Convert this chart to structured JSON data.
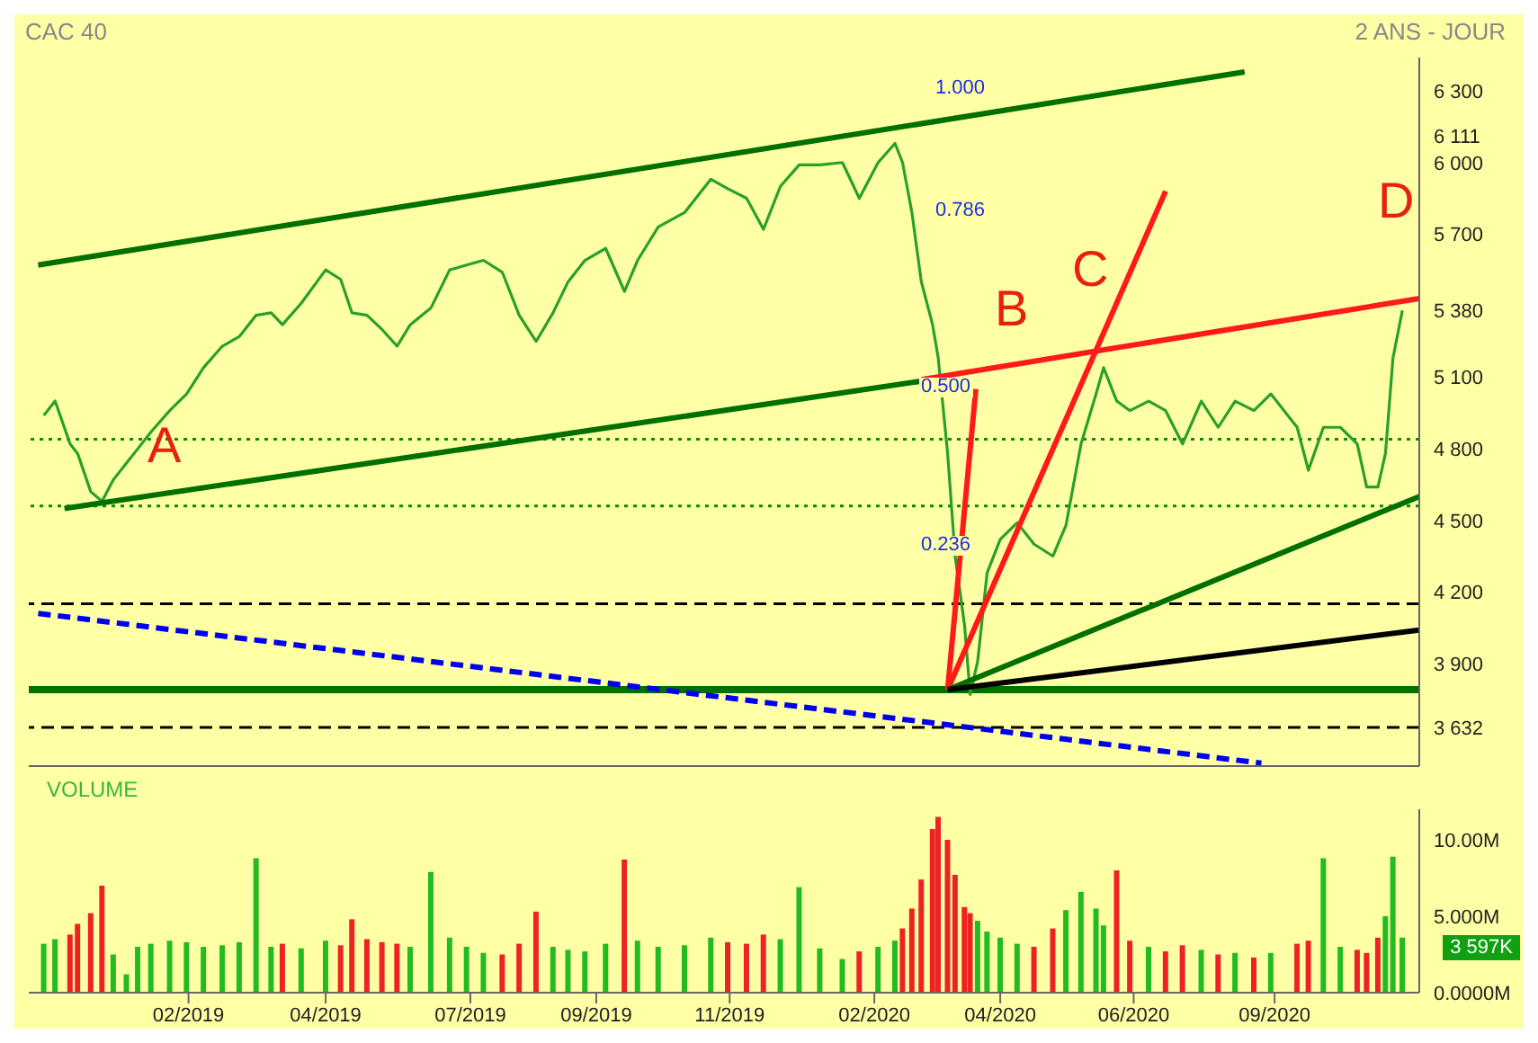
{
  "chart_data": [
    {
      "type": "line",
      "title": "CAC 40",
      "subtitle": "2 ANS - JOUR",
      "tick_labels": "y",
      "xlim": [
        "2018-11-08",
        "2020-11-17"
      ],
      "ylim": [
        3470,
        6440
      ],
      "yticks": [
        {
          "value": 3632,
          "label": "3 632"
        },
        {
          "value": 3900,
          "label": "3 900"
        },
        {
          "value": 4200,
          "label": "4 200"
        },
        {
          "value": 4500,
          "label": "4 500"
        },
        {
          "value": 4800,
          "label": "4 800"
        },
        {
          "value": 5100,
          "label": "5 100"
        },
        {
          "value": 5380,
          "label": "5 380"
        },
        {
          "value": 5700,
          "label": "5 700"
        },
        {
          "value": 6000,
          "label": "6 000"
        },
        {
          "value": 6111,
          "label": "6 111"
        },
        {
          "value": 6300,
          "label": "6 300"
        }
      ],
      "series": [
        {
          "type": "line",
          "color": "#2aa02a",
          "x": [
            "2018-11-16",
            "2018-11-22",
            "2018-11-30",
            "2018-12-04",
            "2018-12-11",
            "2018-12-17",
            "2018-12-23",
            "2018-12-30",
            "2019-01-05",
            "2019-01-12",
            "2019-01-22",
            "2019-01-31",
            "2019-02-09",
            "2019-02-19",
            "2019-02-28",
            "2019-03-09",
            "2019-03-17",
            "2019-03-23",
            "2019-04-02",
            "2019-04-15",
            "2019-04-23",
            "2019-04-29",
            "2019-05-07",
            "2019-05-15",
            "2019-05-23",
            "2019-05-30",
            "2019-06-10",
            "2019-06-20",
            "2019-06-29",
            "2019-07-08",
            "2019-07-18",
            "2019-07-27",
            "2019-08-05",
            "2019-08-14",
            "2019-08-22",
            "2019-08-31",
            "2019-09-11",
            "2019-09-21",
            "2019-09-28",
            "2019-10-09",
            "2019-10-23",
            "2019-11-06",
            "2019-11-15",
            "2019-11-25",
            "2019-12-04",
            "2019-12-13",
            "2019-12-23",
            "2020-01-03",
            "2020-01-15",
            "2020-01-24",
            "2020-02-03",
            "2020-02-12",
            "2020-02-16",
            "2020-02-21",
            "2020-02-26",
            "2020-03-03",
            "2020-03-06",
            "2020-03-11",
            "2020-03-15",
            "2020-03-20",
            "2020-03-23",
            "2020-03-27",
            "2020-04-01",
            "2020-04-08",
            "2020-04-17",
            "2020-04-26",
            "2020-05-06",
            "2020-05-13",
            "2020-05-21",
            "2020-05-29",
            "2020-06-02",
            "2020-06-09",
            "2020-06-16",
            "2020-06-26",
            "2020-07-05",
            "2020-07-14",
            "2020-07-24",
            "2020-08-02",
            "2020-08-11",
            "2020-08-21",
            "2020-08-30",
            "2020-09-13",
            "2020-09-19",
            "2020-09-27",
            "2020-10-06",
            "2020-10-15",
            "2020-10-20",
            "2020-10-26",
            "2020-10-30",
            "2020-11-03",
            "2020-11-08"
          ],
          "values": [
            4940,
            5000,
            4820,
            4780,
            4620,
            4580,
            4670,
            4740,
            4800,
            4870,
            4960,
            5030,
            5140,
            5230,
            5270,
            5360,
            5370,
            5320,
            5410,
            5550,
            5510,
            5370,
            5360,
            5300,
            5230,
            5320,
            5390,
            5550,
            5570,
            5590,
            5540,
            5360,
            5250,
            5370,
            5500,
            5590,
            5640,
            5460,
            5590,
            5730,
            5790,
            5930,
            5890,
            5850,
            5720,
            5900,
            5990,
            5990,
            6000,
            5850,
            6000,
            6080,
            6000,
            5790,
            5500,
            5320,
            5180,
            4780,
            4350,
            4060,
            3770,
            3910,
            4280,
            4420,
            4490,
            4400,
            4350,
            4480,
            4820,
            5030,
            5140,
            5000,
            4960,
            5000,
            4960,
            4820,
            5000,
            4890,
            5000,
            4960,
            5030,
            4890,
            4710,
            4890,
            4890,
            4820,
            4640,
            4640,
            4780,
            5180,
            5380
          ]
        },
        {
          "type": "line",
          "color": "#007000",
          "line_style": "solid",
          "x": [
            "2018-11-13",
            "2020-08-16"
          ],
          "values": [
            5570,
            6380
          ]
        },
        {
          "type": "line",
          "color": "#007000",
          "line_style": "solid",
          "x": [
            "2018-11-27",
            "2020-03-11"
          ],
          "values": [
            4550,
            5100
          ]
        },
        {
          "type": "line",
          "color": "#ff1a1a",
          "line_style": "solid",
          "x": [
            "2020-02-26",
            "2020-11-17"
          ],
          "values": [
            5090,
            5430
          ]
        },
        {
          "type": "line",
          "color": "#ff1a1a",
          "line_style": "solid",
          "x": [
            "2020-03-11",
            "2020-07-05"
          ],
          "values": [
            3790,
            5880
          ]
        },
        {
          "type": "line",
          "color": "#ff1a1a",
          "line_style": "solid",
          "x": [
            "2020-03-11",
            "2020-03-26"
          ],
          "values": [
            3790,
            5050
          ]
        },
        {
          "type": "line",
          "color": "#007000",
          "line_style": "solid",
          "x": [
            "2020-03-11",
            "2020-11-17"
          ],
          "values": [
            3790,
            4600
          ]
        },
        {
          "type": "line",
          "color": "#000000",
          "line_style": "solid",
          "x": [
            "2020-03-11",
            "2020-11-17"
          ],
          "values": [
            3790,
            4040
          ]
        },
        {
          "type": "line",
          "color": "#0000ee",
          "line_style": "dashed",
          "x": [
            "2018-11-13",
            "2020-08-25"
          ],
          "values": [
            4110,
            3482
          ]
        }
      ],
      "ref_lines": [
        {
          "axis": "y",
          "value": 3632,
          "color": "#000000",
          "line_style": "dashed"
        },
        {
          "axis": "y",
          "value": 3790,
          "color": "#007000",
          "line_style": "solid"
        },
        {
          "axis": "y",
          "value": 4150,
          "color": "#000000",
          "line_style": "dashed"
        },
        {
          "axis": "y",
          "value": 4560,
          "color": "#009000",
          "line_style": "dotted"
        },
        {
          "axis": "y",
          "value": 4840,
          "color": "#009000",
          "line_style": "dotted"
        }
      ],
      "annotations": [
        "A",
        "B",
        "C",
        "D",
        "1.000",
        "0.786",
        "0.500",
        "0.236"
      ]
    },
    {
      "type": "bar",
      "title": "VOLUME",
      "xlim": [
        "2018-11-08",
        "2020-11-17"
      ],
      "xticks": [
        {
          "value": "2019-02-01",
          "label": "02/2019"
        },
        {
          "value": "2019-04-15",
          "label": "04/2019"
        },
        {
          "value": "2019-07-01",
          "label": "07/2019"
        },
        {
          "value": "2019-09-06",
          "label": "09/2019"
        },
        {
          "value": "2019-11-16",
          "label": "11/2019"
        },
        {
          "value": "2020-02-01",
          "label": "02/2020"
        },
        {
          "value": "2020-04-08",
          "label": "04/2020"
        },
        {
          "value": "2020-06-18",
          "label": "06/2020"
        },
        {
          "value": "2020-09-01",
          "label": "09/2020"
        }
      ],
      "ylim": [
        0,
        12
      ],
      "yticks": [
        {
          "value": 0,
          "label": "0.0000M"
        },
        {
          "value": 5,
          "label": "5.000M"
        },
        {
          "value": 10,
          "label": "10.00M"
        }
      ],
      "annotations": [
        "3 597K"
      ],
      "x": [
        "2018-11-16",
        "2018-11-22",
        "2018-11-30",
        "2018-12-04",
        "2018-12-11",
        "2018-12-17",
        "2018-12-23",
        "2018-12-30",
        "2019-01-05",
        "2019-01-12",
        "2019-01-22",
        "2019-01-31",
        "2019-02-09",
        "2019-02-19",
        "2019-02-28",
        "2019-03-09",
        "2019-03-17",
        "2019-03-23",
        "2019-04-02",
        "2019-04-15",
        "2019-04-23",
        "2019-04-29",
        "2019-05-07",
        "2019-05-15",
        "2019-05-23",
        "2019-05-30",
        "2019-06-10",
        "2019-06-20",
        "2019-06-29",
        "2019-07-08",
        "2019-07-18",
        "2019-07-27",
        "2019-08-05",
        "2019-08-14",
        "2019-08-22",
        "2019-08-31",
        "2019-09-11",
        "2019-09-21",
        "2019-09-28",
        "2019-10-09",
        "2019-10-23",
        "2019-11-06",
        "2019-11-15",
        "2019-11-25",
        "2019-12-04",
        "2019-12-13",
        "2019-12-23",
        "2020-01-03",
        "2020-01-15",
        "2020-01-24",
        "2020-02-03",
        "2020-02-12",
        "2020-02-16",
        "2020-02-21",
        "2020-02-26",
        "2020-03-03",
        "2020-03-06",
        "2020-03-11",
        "2020-03-15",
        "2020-03-20",
        "2020-03-23",
        "2020-03-27",
        "2020-04-01",
        "2020-04-08",
        "2020-04-17",
        "2020-04-26",
        "2020-05-06",
        "2020-05-13",
        "2020-05-21",
        "2020-05-29",
        "2020-06-02",
        "2020-06-09",
        "2020-06-16",
        "2020-06-26",
        "2020-07-05",
        "2020-07-14",
        "2020-07-24",
        "2020-08-02",
        "2020-08-11",
        "2020-08-21",
        "2020-08-30",
        "2020-09-13",
        "2020-09-19",
        "2020-09-27",
        "2020-10-06",
        "2020-10-15",
        "2020-10-20",
        "2020-10-26",
        "2020-10-30",
        "2020-11-03",
        "2020-11-08"
      ],
      "values": [
        3.2,
        3.5,
        3.8,
        4.5,
        5.2,
        7.0,
        2.5,
        1.2,
        3.0,
        3.2,
        3.4,
        3.3,
        3.0,
        3.1,
        3.3,
        8.8,
        3.0,
        3.2,
        2.9,
        3.4,
        3.1,
        4.8,
        3.5,
        3.3,
        3.2,
        3.0,
        7.9,
        3.6,
        3.0,
        2.6,
        2.5,
        3.2,
        5.3,
        3.0,
        2.8,
        2.7,
        3.2,
        8.7,
        3.4,
        3.0,
        3.1,
        3.6,
        3.3,
        3.2,
        3.8,
        3.5,
        6.9,
        2.9,
        2.2,
        2.7,
        3.0,
        3.4,
        4.2,
        5.5,
        7.4,
        10.7,
        11.5,
        10.0,
        7.7,
        5.6,
        5.2,
        4.7,
        4.0,
        3.6,
        3.2,
        3.0,
        4.2,
        5.4,
        6.6,
        5.5,
        4.4,
        8.0,
        3.4,
        3.0,
        2.7,
        3.1,
        2.8,
        2.5,
        2.6,
        2.3,
        2.6,
        3.2,
        3.4,
        8.8,
        3.0,
        2.8,
        2.6,
        3.6,
        5.0,
        8.9,
        3.6
      ],
      "colors": [
        "#22bb22",
        "#22bb22",
        "#ee2222",
        "#ee2222",
        "#ee2222",
        "#ee2222",
        "#22bb22",
        "#22bb22",
        "#22bb22",
        "#22bb22",
        "#22bb22",
        "#22bb22",
        "#22bb22",
        "#22bb22",
        "#22bb22",
        "#22bb22",
        "#22bb22",
        "#ee2222",
        "#22bb22",
        "#22bb22",
        "#ee2222",
        "#ee2222",
        "#ee2222",
        "#ee2222",
        "#ee2222",
        "#22bb22",
        "#22bb22",
        "#22bb22",
        "#22bb22",
        "#22bb22",
        "#ee2222",
        "#ee2222",
        "#ee2222",
        "#22bb22",
        "#22bb22",
        "#22bb22",
        "#22bb22",
        "#ee2222",
        "#22bb22",
        "#22bb22",
        "#22bb22",
        "#22bb22",
        "#ee2222",
        "#ee2222",
        "#ee2222",
        "#22bb22",
        "#22bb22",
        "#22bb22",
        "#22bb22",
        "#ee2222",
        "#22bb22",
        "#22bb22",
        "#ee2222",
        "#ee2222",
        "#ee2222",
        "#ee2222",
        "#ee2222",
        "#ee2222",
        "#ee2222",
        "#ee2222",
        "#ee2222",
        "#22bb22",
        "#22bb22",
        "#22bb22",
        "#22bb22",
        "#ee2222",
        "#ee2222",
        "#22bb22",
        "#22bb22",
        "#22bb22",
        "#22bb22",
        "#ee2222",
        "#ee2222",
        "#22bb22",
        "#ee2222",
        "#ee2222",
        "#22bb22",
        "#ee2222",
        "#22bb22",
        "#ee2222",
        "#22bb22",
        "#ee2222",
        "#ee2222",
        "#22bb22",
        "#22bb22",
        "#ee2222",
        "#ee2222",
        "#ee2222",
        "#22bb22",
        "#22bb22",
        "#22bb22"
      ]
    }
  ]
}
